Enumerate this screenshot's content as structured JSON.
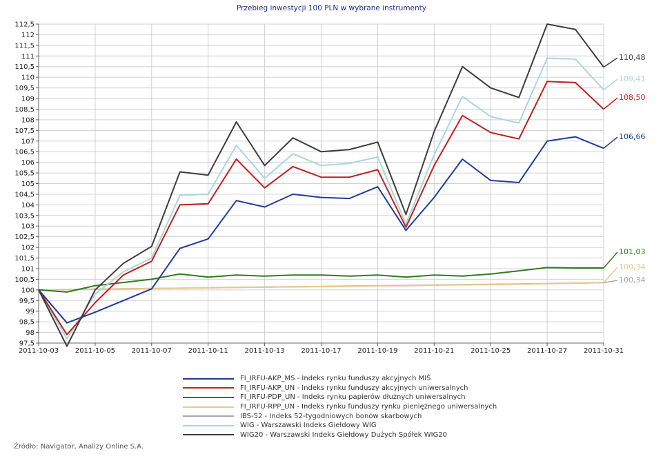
{
  "chart_data": {
    "type": "line",
    "title": "Przebieg inwestycji 100 PLN w wybrane instrumenty",
    "xlabel": "",
    "ylabel": "",
    "ylim": [
      97.5,
      112.5
    ],
    "ytick_step": 0.5,
    "grid": true,
    "legend_position": "bottom",
    "x_tick_labels": [
      "2011-10-03",
      "2011-10-05",
      "2011-10-07",
      "2011-10-11",
      "2011-10-13",
      "2011-10-17",
      "2011-10-19",
      "2011-10-21",
      "2011-10-25",
      "2011-10-27",
      "2011-10-31"
    ],
    "x": [
      "2011-10-03",
      "2011-10-04",
      "2011-10-05",
      "2011-10-06",
      "2011-10-07",
      "2011-10-10",
      "2011-10-11",
      "2011-10-12",
      "2011-10-13",
      "2011-10-14",
      "2011-10-17",
      "2011-10-18",
      "2011-10-19",
      "2011-10-20",
      "2011-10-21",
      "2011-10-24",
      "2011-10-25",
      "2011-10-26",
      "2011-10-27",
      "2011-10-28",
      "2011-10-31"
    ],
    "series": [
      {
        "name": "FI_IRFU-AKP_MS - Indeks rynku funduszy akcyjnych MIŚ",
        "color": "#1f3a9e",
        "end_label": "106,66",
        "values": [
          100,
          98.45,
          98.95,
          99.5,
          100.05,
          101.95,
          102.4,
          104.2,
          103.9,
          104.5,
          104.35,
          104.3,
          104.85,
          102.8,
          104.35,
          106.15,
          105.15,
          105.05,
          107.0,
          107.2,
          106.66
        ]
      },
      {
        "name": "FI_IRFU-AKP_UN - Indeks rynku funduszy akcyjnych uniwersalnych",
        "color": "#c0201e",
        "end_label": "108,50",
        "values": [
          100,
          97.9,
          99.4,
          100.7,
          101.35,
          104.0,
          104.05,
          106.15,
          104.8,
          105.8,
          105.3,
          105.3,
          105.65,
          102.95,
          105.85,
          108.2,
          107.4,
          107.1,
          109.8,
          109.75,
          108.5
        ]
      },
      {
        "name": "FI_IRFU-PDP_UN - Indeks rynku papierów dłużnych uniwersalnych",
        "color": "#2e7d1b",
        "end_label": "101,03",
        "values": [
          100,
          99.9,
          100.2,
          100.35,
          100.5,
          100.75,
          100.6,
          100.7,
          100.65,
          100.7,
          100.7,
          100.65,
          100.7,
          100.6,
          100.7,
          100.65,
          100.75,
          100.9,
          101.05,
          101.03,
          101.03
        ]
      },
      {
        "name": "FI_IRFU-RPP_UN - Indeks rynku funduszy rynku pieniężnego uniwersalnych",
        "color": "#e8c98a",
        "end_label": "100,34",
        "values": [
          100,
          100.02,
          100.03,
          100.05,
          100.06,
          100.08,
          100.1,
          100.11,
          100.13,
          100.14,
          100.16,
          100.17,
          100.19,
          100.2,
          100.22,
          100.24,
          100.25,
          100.27,
          100.29,
          100.31,
          100.34
        ]
      },
      {
        "name": "IBS-52 - Indeks 52-tygodniowych bonów skarbowych",
        "color": "#a8a8a8",
        "end_label": "100,34",
        "values": [
          100,
          100.02,
          100.04,
          100.05,
          100.07,
          100.08,
          100.1,
          100.12,
          100.13,
          100.15,
          100.16,
          100.18,
          100.2,
          100.21,
          100.23,
          100.25,
          100.26,
          100.28,
          100.3,
          100.32,
          100.34
        ]
      },
      {
        "name": "WIG - Warszawski Indeks Giełdowy WIG",
        "color": "#a9d6dc",
        "end_label": "109,41",
        "values": [
          100,
          97.7,
          99.8,
          100.85,
          101.5,
          104.45,
          104.5,
          106.8,
          105.25,
          106.4,
          105.85,
          105.95,
          106.25,
          103.1,
          106.35,
          109.1,
          108.15,
          107.85,
          110.9,
          110.85,
          109.41
        ]
      },
      {
        "name": "WIG20 - Warszawski Indeks Giełdowy Dużych Spółek WIG20",
        "color": "#3c3c3c",
        "end_label": "110,48",
        "values": [
          100,
          97.35,
          100.0,
          101.25,
          102.05,
          105.55,
          105.4,
          107.9,
          105.85,
          107.15,
          106.5,
          106.6,
          106.95,
          103.55,
          107.45,
          110.5,
          109.5,
          109.05,
          112.5,
          112.25,
          110.48
        ]
      }
    ]
  },
  "footer": {
    "source": "Źródło: Navigator, Analizy Online S.A."
  }
}
